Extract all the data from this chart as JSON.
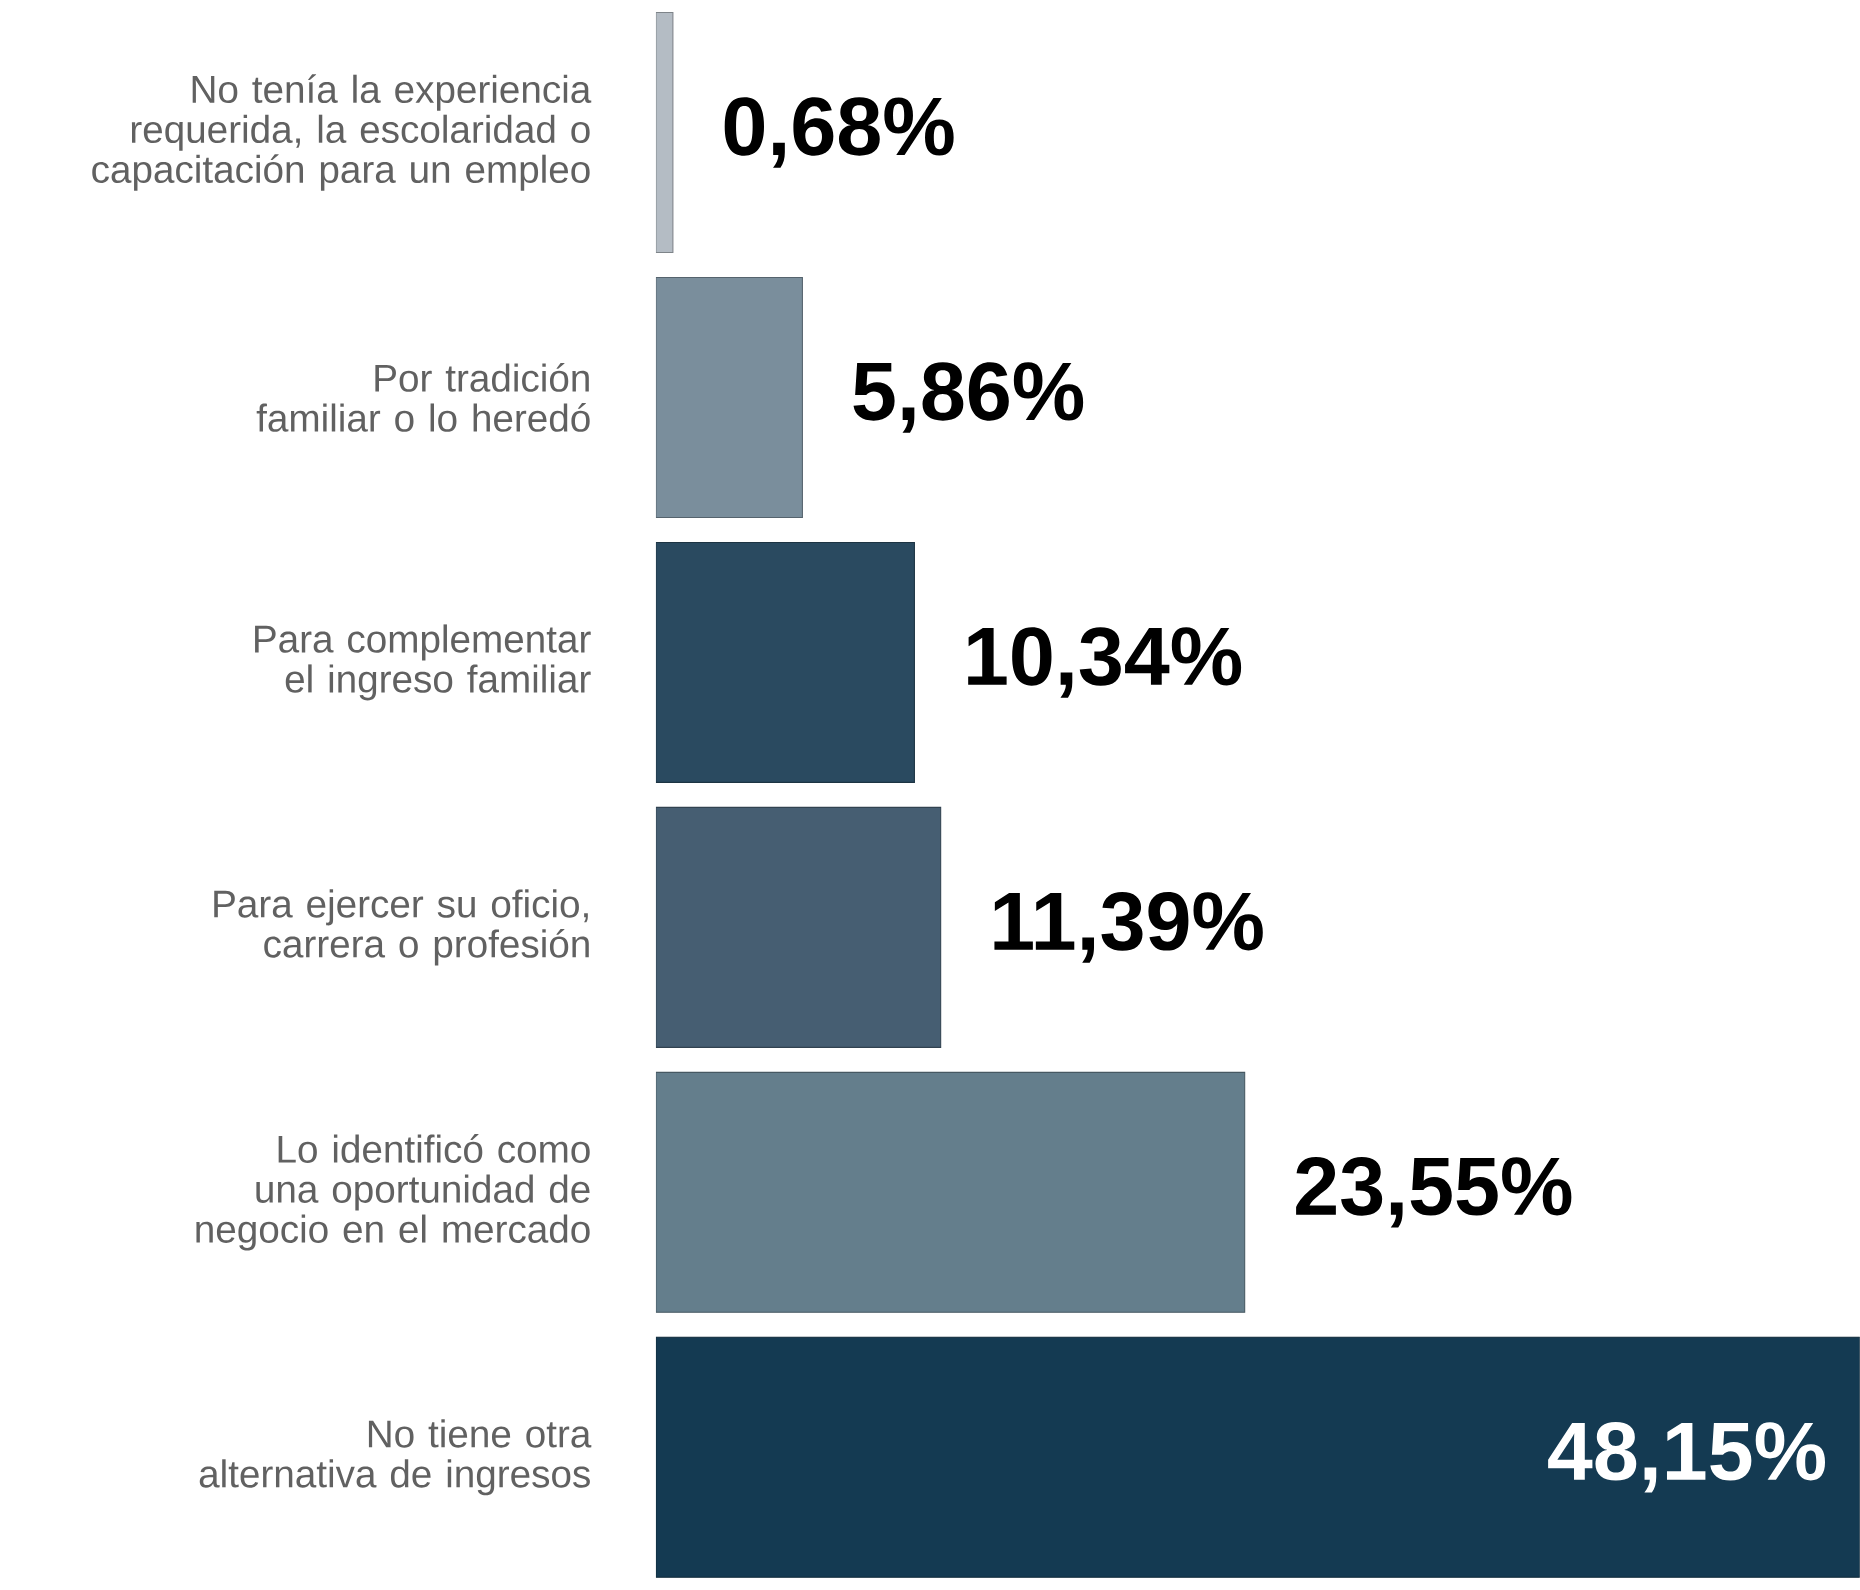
{
  "chart_data": {
    "type": "bar",
    "orientation": "horizontal",
    "tick_labels": "y",
    "categories": [
      "No tenía la experiencia requerida, la escolaridad o capacitación para un empleo",
      "Por tradición familiar o lo heredó",
      "Para complementar el ingreso familiar",
      "Para ejercer su oficio, carrera o profesión",
      "Lo identificó como una oportunidad de negocio en el mercado",
      "No tiene otra alternativa de ingresos"
    ],
    "values": [
      0.68,
      5.86,
      10.34,
      11.39,
      23.55,
      48.15
    ],
    "colors": [
      "#b4bcc4",
      "#7a8e9c",
      "#2a4a60",
      "#465e72",
      "#647e8c",
      "#143a52"
    ],
    "value_labels": [
      "0,68%",
      "5,86%",
      "10,34%",
      "11,39%",
      "23,55%",
      "48,15%"
    ]
  }
}
